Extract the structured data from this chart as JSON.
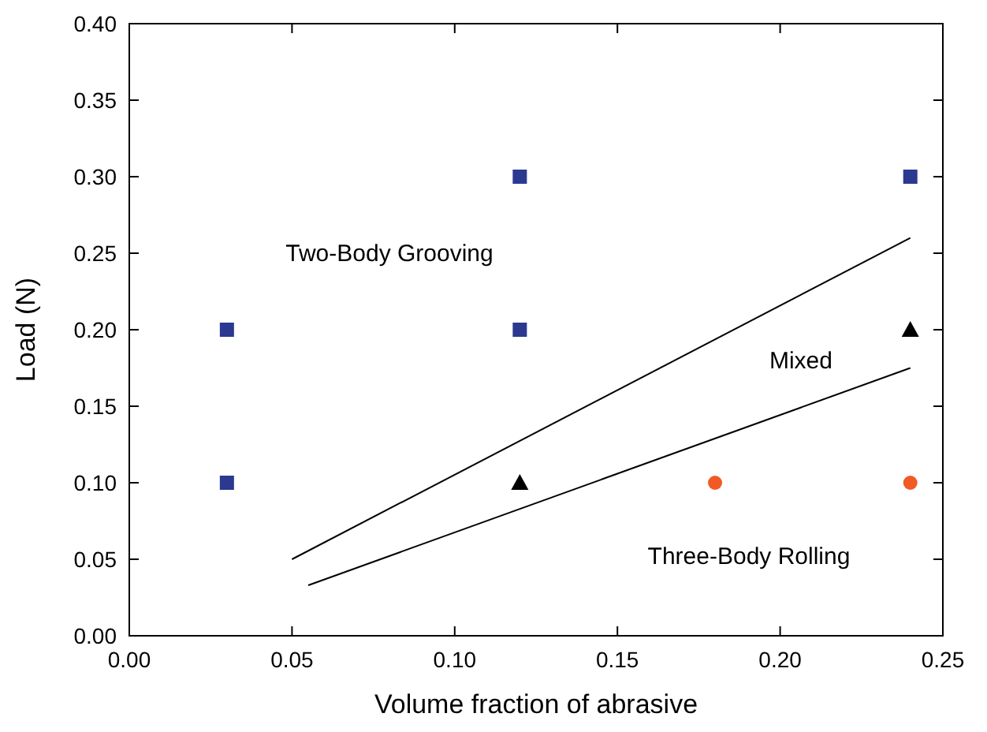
{
  "chart_data": {
    "type": "scatter",
    "xlabel": "Volume fraction of abrasive",
    "ylabel": "Load (N)",
    "xlim": [
      0,
      0.25
    ],
    "ylim": [
      0,
      0.4
    ],
    "xticks": [
      {
        "value": 0,
        "label": "0.00"
      },
      {
        "value": 0.05,
        "label": "0.05"
      },
      {
        "value": 0.1,
        "label": "0.10"
      },
      {
        "value": 0.15,
        "label": "0.15"
      },
      {
        "value": 0.2,
        "label": "0.20"
      },
      {
        "value": 0.25,
        "label": "0.25"
      }
    ],
    "yticks": [
      {
        "value": 0,
        "label": "0.00"
      },
      {
        "value": 0.05,
        "label": "0.05"
      },
      {
        "value": 0.1,
        "label": "0.10"
      },
      {
        "value": 0.15,
        "label": "0.15"
      },
      {
        "value": 0.2,
        "label": "0.20"
      },
      {
        "value": 0.25,
        "label": "0.25"
      },
      {
        "value": 0.3,
        "label": "0.30"
      },
      {
        "value": 0.35,
        "label": "0.35"
      },
      {
        "value": 0.4,
        "label": "0.40"
      }
    ],
    "grid": false,
    "series": [
      {
        "marker": "square",
        "color": "#2b3990",
        "x": [
          0.03,
          0.03,
          0.12,
          0.12,
          0.24
        ],
        "values": [
          0.1,
          0.2,
          0.2,
          0.3,
          0.3
        ]
      },
      {
        "marker": "triangle",
        "color": "#000000",
        "x": [
          0.12,
          0.24
        ],
        "values": [
          0.1,
          0.2
        ]
      },
      {
        "marker": "circle",
        "color": "#f15a24",
        "x": [
          0.18,
          0.24
        ],
        "values": [
          0.1,
          0.1
        ]
      },
      {
        "type": "line",
        "marker": "none",
        "line_style": "solid",
        "color": "#000000",
        "x": [
          0.05,
          0.24
        ],
        "values": [
          0.05,
          0.26
        ]
      },
      {
        "type": "line",
        "marker": "none",
        "line_style": "solid",
        "color": "#000000",
        "x": [
          0.055,
          0.24
        ],
        "values": [
          0.033,
          0.175
        ]
      }
    ],
    "annotations": [
      "Two-Body Grooving",
      "Mixed",
      "Three-Body Rolling"
    ]
  }
}
